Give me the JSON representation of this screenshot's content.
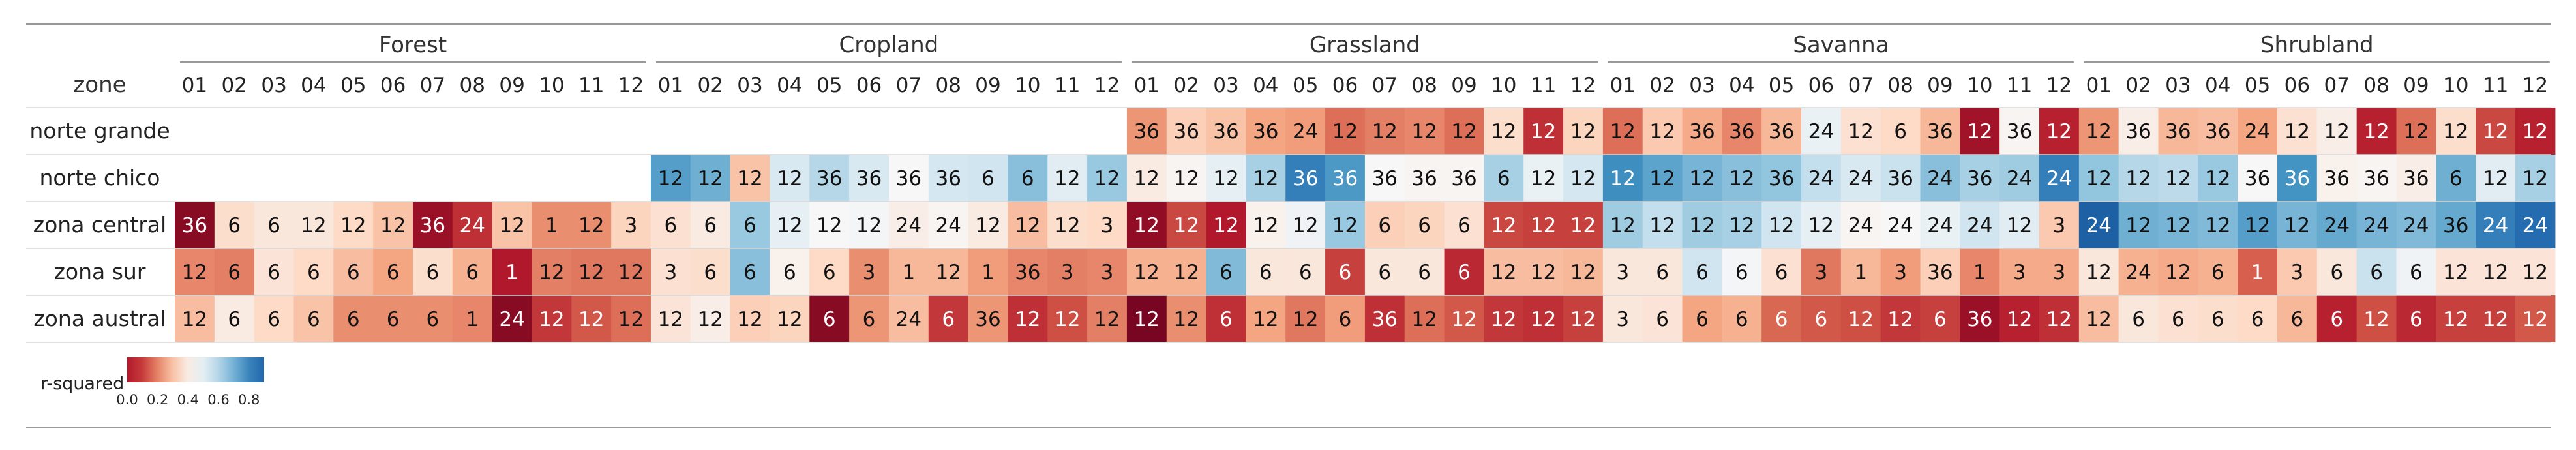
{
  "chart_data": {
    "type": "heatmap",
    "title": "",
    "row_header": "zone",
    "groups": [
      "Forest",
      "Cropland",
      "Grassland",
      "Savanna",
      "Shrubland"
    ],
    "months": [
      "01",
      "02",
      "03",
      "04",
      "05",
      "06",
      "07",
      "08",
      "09",
      "10",
      "11",
      "12"
    ],
    "rows": [
      "norte grande",
      "norte chico",
      "zona central",
      "zona sur",
      "zona austral"
    ],
    "color_scale": {
      "label": "r-squared",
      "colormap": "RdBu",
      "vmin": 0.0,
      "vmax": 0.9,
      "ticks": [
        "0.0",
        "0.2",
        "0.4",
        "0.6",
        "0.8"
      ]
    },
    "annotations": [
      [
        null,
        null,
        null,
        null,
        null,
        null,
        null,
        null,
        null,
        null,
        null,
        null,
        null,
        null,
        null,
        null,
        null,
        null,
        null,
        null,
        null,
        null,
        null,
        null,
        "36",
        "36",
        "36",
        "36",
        "24",
        "12",
        "12",
        "12",
        "12",
        "12",
        "12",
        "12",
        "12",
        "12",
        "36",
        "36",
        "36",
        "24",
        "12",
        "6",
        "36",
        "12",
        "36",
        "12",
        "12",
        "36",
        "36",
        "36",
        "24",
        "12",
        "12",
        "12",
        "12",
        "12",
        "12",
        "12"
      ],
      [
        null,
        null,
        null,
        null,
        null,
        null,
        null,
        null,
        null,
        null,
        null,
        null,
        "12",
        "12",
        "12",
        "12",
        "36",
        "36",
        "36",
        "36",
        "6",
        "6",
        "12",
        "12",
        "12",
        "12",
        "12",
        "12",
        "36",
        "36",
        "36",
        "36",
        "36",
        "6",
        "12",
        "12",
        "12",
        "12",
        "12",
        "12",
        "36",
        "24",
        "24",
        "36",
        "24",
        "36",
        "24",
        "24",
        "12",
        "12",
        "12",
        "12",
        "36",
        "36",
        "36",
        "36",
        "36",
        "6",
        "12",
        "12"
      ],
      [
        "36",
        "6",
        "6",
        "12",
        "12",
        "12",
        "36",
        "24",
        "12",
        "1",
        "12",
        "3",
        "6",
        "6",
        "6",
        "12",
        "12",
        "12",
        "24",
        "24",
        "12",
        "12",
        "12",
        "3",
        "12",
        "12",
        "12",
        "12",
        "12",
        "12",
        "6",
        "6",
        "6",
        "12",
        "12",
        "12",
        "12",
        "12",
        "12",
        "12",
        "12",
        "12",
        "24",
        "24",
        "24",
        "24",
        "12",
        "3",
        "24",
        "12",
        "12",
        "12",
        "12",
        "12",
        "24",
        "24",
        "24",
        "36",
        "24",
        "24"
      ],
      [
        "12",
        "6",
        "6",
        "6",
        "6",
        "6",
        "6",
        "6",
        "1",
        "12",
        "12",
        "12",
        "3",
        "6",
        "6",
        "6",
        "6",
        "3",
        "1",
        "12",
        "1",
        "36",
        "3",
        "3",
        "12",
        "12",
        "6",
        "6",
        "6",
        "6",
        "6",
        "6",
        "6",
        "12",
        "12",
        "12",
        "3",
        "6",
        "6",
        "6",
        "6",
        "3",
        "1",
        "3",
        "36",
        "1",
        "3",
        "3",
        "12",
        "24",
        "12",
        "6",
        "1",
        "3",
        "6",
        "6",
        "6",
        "12",
        "12",
        "12"
      ],
      [
        "12",
        "6",
        "6",
        "6",
        "6",
        "6",
        "6",
        "1",
        "24",
        "12",
        "12",
        "12",
        "12",
        "12",
        "12",
        "12",
        "6",
        "6",
        "24",
        "6",
        "36",
        "12",
        "12",
        "12",
        "12",
        "12",
        "6",
        "12",
        "12",
        "6",
        "36",
        "12",
        "12",
        "12",
        "12",
        "12",
        "3",
        "6",
        "6",
        "6",
        "6",
        "6",
        "12",
        "12",
        "6",
        "36",
        "12",
        "12",
        "12",
        "6",
        "6",
        "6",
        "6",
        "6",
        "6",
        "12",
        "6",
        "12",
        "12",
        "12"
      ]
    ],
    "values": [
      [
        null,
        null,
        null,
        null,
        null,
        null,
        null,
        null,
        null,
        null,
        null,
        null,
        null,
        null,
        null,
        null,
        null,
        null,
        null,
        null,
        null,
        null,
        null,
        null,
        0.25,
        0.34,
        0.32,
        0.27,
        0.26,
        0.2,
        0.22,
        0.23,
        0.2,
        0.37,
        0.12,
        0.35,
        0.2,
        0.33,
        0.28,
        0.23,
        0.3,
        0.48,
        0.38,
        0.36,
        0.3,
        0.07,
        0.44,
        0.1,
        0.25,
        0.42,
        0.3,
        0.31,
        0.27,
        0.38,
        0.42,
        0.1,
        0.2,
        0.37,
        0.15,
        0.1
      ],
      [
        null,
        null,
        null,
        null,
        null,
        null,
        null,
        null,
        null,
        null,
        null,
        null,
        0.7,
        0.67,
        0.32,
        0.52,
        0.58,
        0.52,
        0.45,
        0.53,
        0.54,
        0.64,
        0.5,
        0.62,
        0.41,
        0.44,
        0.49,
        0.6,
        0.76,
        0.71,
        0.45,
        0.44,
        0.44,
        0.6,
        0.48,
        0.53,
        0.73,
        0.69,
        0.66,
        0.64,
        0.63,
        0.56,
        0.52,
        0.55,
        0.64,
        0.6,
        0.61,
        0.76,
        0.63,
        0.58,
        0.57,
        0.62,
        0.45,
        0.72,
        0.43,
        0.44,
        0.42,
        0.67,
        0.5,
        0.6
      ],
      [
        0.04,
        0.37,
        0.4,
        0.4,
        0.36,
        0.32,
        0.06,
        0.12,
        0.32,
        0.24,
        0.24,
        0.35,
        0.38,
        0.41,
        0.62,
        0.49,
        0.45,
        0.46,
        0.42,
        0.44,
        0.41,
        0.31,
        0.37,
        0.36,
        0.05,
        0.15,
        0.09,
        0.43,
        0.47,
        0.62,
        0.34,
        0.35,
        0.38,
        0.15,
        0.14,
        0.14,
        0.61,
        0.56,
        0.61,
        0.6,
        0.54,
        0.49,
        0.44,
        0.45,
        0.48,
        0.54,
        0.5,
        0.33,
        0.82,
        0.67,
        0.66,
        0.65,
        0.7,
        0.66,
        0.68,
        0.66,
        0.65,
        0.68,
        0.76,
        0.8
      ],
      [
        0.23,
        0.22,
        0.39,
        0.36,
        0.31,
        0.27,
        0.37,
        0.29,
        0.09,
        0.22,
        0.21,
        0.21,
        0.38,
        0.37,
        0.64,
        0.43,
        0.36,
        0.24,
        0.3,
        0.3,
        0.26,
        0.23,
        0.22,
        0.23,
        0.29,
        0.29,
        0.65,
        0.4,
        0.4,
        0.14,
        0.4,
        0.4,
        0.11,
        0.31,
        0.31,
        0.3,
        0.4,
        0.4,
        0.54,
        0.46,
        0.38,
        0.21,
        0.3,
        0.26,
        0.34,
        0.23,
        0.28,
        0.28,
        0.4,
        0.29,
        0.28,
        0.29,
        0.18,
        0.33,
        0.4,
        0.55,
        0.47,
        0.39,
        0.39,
        0.39
      ],
      [
        0.31,
        0.41,
        0.36,
        0.32,
        0.24,
        0.24,
        0.24,
        0.23,
        0.04,
        0.13,
        0.17,
        0.2,
        0.39,
        0.42,
        0.34,
        0.35,
        0.04,
        0.25,
        0.31,
        0.13,
        0.25,
        0.12,
        0.16,
        0.22,
        0.02,
        0.24,
        0.12,
        0.27,
        0.21,
        0.26,
        0.12,
        0.2,
        0.17,
        0.13,
        0.12,
        0.14,
        0.4,
        0.39,
        0.27,
        0.29,
        0.19,
        0.17,
        0.16,
        0.13,
        0.14,
        0.06,
        0.1,
        0.12,
        0.31,
        0.4,
        0.38,
        0.37,
        0.36,
        0.3,
        0.1,
        0.16,
        0.11,
        0.14,
        0.14,
        0.17
      ]
    ]
  }
}
